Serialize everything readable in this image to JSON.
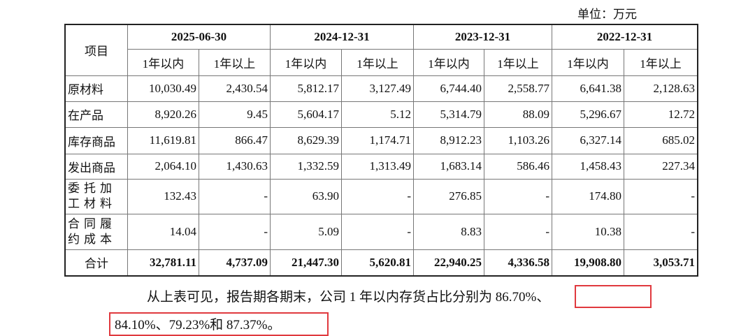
{
  "unit": "单位：万元",
  "header": {
    "item": "项目",
    "periods": [
      "2025-06-30",
      "2024-12-31",
      "2023-12-31",
      "2022-12-31"
    ],
    "sub": [
      "1年以内",
      "1年以上"
    ]
  },
  "rows": [
    {
      "label": "原材料",
      "values": [
        "10,030.49",
        "2,430.54",
        "5,812.17",
        "3,127.49",
        "6,744.40",
        "2,558.77",
        "6,641.38",
        "2,128.63"
      ]
    },
    {
      "label": "在产品",
      "values": [
        "8,920.26",
        "9.45",
        "5,604.17",
        "5.12",
        "5,314.79",
        "88.09",
        "5,296.67",
        "12.72"
      ]
    },
    {
      "label": "库存商品",
      "values": [
        "11,619.81",
        "866.47",
        "8,629.39",
        "1,174.71",
        "8,912.23",
        "1,103.26",
        "6,327.14",
        "685.02"
      ]
    },
    {
      "label": "发出商品",
      "values": [
        "2,064.10",
        "1,430.63",
        "1,332.59",
        "1,313.49",
        "1,683.14",
        "586.46",
        "1,458.43",
        "227.34"
      ]
    },
    {
      "label": "委托加工材料",
      "values": [
        "132.43",
        "-",
        "63.90",
        "-",
        "276.85",
        "-",
        "174.80",
        "-"
      ]
    },
    {
      "label": "合同履约成本",
      "values": [
        "14.04",
        "-",
        "5.09",
        "-",
        "8.83",
        "-",
        "10.38",
        "-"
      ]
    }
  ],
  "total": {
    "label": "合计",
    "values": [
      "32,781.11",
      "4,737.09",
      "21,447.30",
      "5,620.81",
      "22,940.25",
      "4,336.58",
      "19,908.80",
      "3,053.71"
    ]
  },
  "paragraph": {
    "line1": "从上表可见，报告期各期末，公司 1 年以内存货占比分别为 86.70%、",
    "line2": "84.10%、79.23%和 87.37%。"
  },
  "highlight_color": "#e0393e"
}
